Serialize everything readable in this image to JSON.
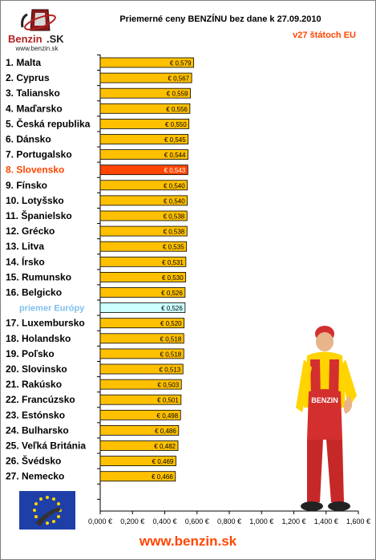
{
  "logo": {
    "brand": "Benzin.SK",
    "url": "www.benzin.sk"
  },
  "header": {
    "title": "Priemerné ceny BENZÍNU bez dane k 27.09.2010",
    "subtitle": "v27 štátoch EU"
  },
  "footer": {
    "url": "www.benzin.sk"
  },
  "colors": {
    "bar_default": "#ffc000",
    "bar_highlight": "#ff4500",
    "bar_average": "#ccffff",
    "highlight_label": "#ff4500",
    "average_label": "#7ec0ee"
  },
  "chart_data": {
    "type": "bar",
    "orientation": "horizontal",
    "title": "Priemerné ceny BENZÍNU bez dane k 27.09.2010",
    "subtitle": "v27 štátoch EU",
    "categories": [
      "1. Malta",
      "2. Cyprus",
      "3. Taliansko",
      "4. Maďarsko",
      "5. Česká republika",
      "6. Dánsko",
      "7. Portugalsko",
      "8. Slovensko",
      "9. Fínsko",
      "10. Lotyšsko",
      "11. Španielsko",
      "12. Grécko",
      "13. Litva",
      "14. Írsko",
      "15. Rumunsko",
      "16. Belgicko",
      "priemer Európy",
      "17. Luxembursko",
      "18. Holandsko",
      "19. Poľsko",
      "20. Slovinsko",
      "21. Rakúsko",
      "22. Francúzsko",
      "23. Estónsko",
      "24. Bulharsko",
      "25. Veľká Británia",
      "26. Švédsko",
      "27. Nemecko"
    ],
    "values": [
      0.579,
      0.567,
      0.559,
      0.556,
      0.55,
      0.545,
      0.544,
      0.543,
      0.54,
      0.54,
      0.538,
      0.538,
      0.535,
      0.531,
      0.53,
      0.526,
      0.526,
      0.52,
      0.518,
      0.518,
      0.513,
      0.503,
      0.501,
      0.498,
      0.486,
      0.482,
      0.469,
      0.466
    ],
    "value_labels": [
      "€ 0,579",
      "€ 0,567",
      "€ 0,559",
      "€ 0,556",
      "€ 0,550",
      "€ 0,545",
      "€ 0,544",
      "€ 0,543",
      "€ 0,540",
      "€ 0,540",
      "€ 0,538",
      "€ 0,538",
      "€ 0,535",
      "€ 0,531",
      "€ 0,530",
      "€ 0,526",
      "€ 0,526",
      "€ 0,520",
      "€ 0,518",
      "€ 0,518",
      "€ 0,513",
      "€ 0,503",
      "€ 0,501",
      "€ 0,498",
      "€ 0,486",
      "€ 0,482",
      "€ 0,469",
      "€ 0,466"
    ],
    "highlight_category": "8. Slovensko",
    "average_category": "priemer Európy",
    "xlim": [
      0,
      1.6
    ],
    "x_ticks": [
      "0,000 €",
      "0,200 €",
      "0,400 €",
      "0,600 €",
      "0,800 €",
      "1,000 €",
      "1,200 €",
      "1,400 €",
      "1,600 €"
    ],
    "grid": false,
    "legend": "none"
  }
}
